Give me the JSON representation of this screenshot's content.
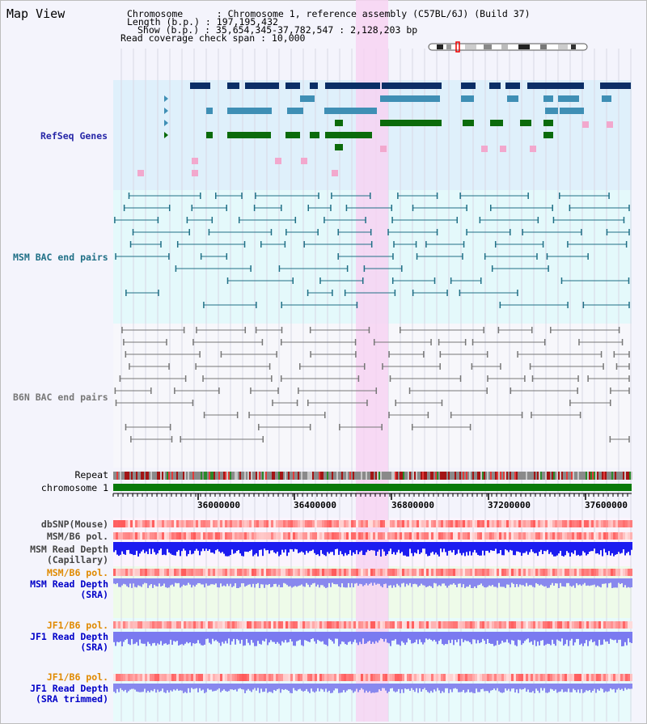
{
  "title": "Map View",
  "info": {
    "chromosome": "Chromosome      : Chromosome 1, reference assembly (C57BL/6J) (Build 37)",
    "length": "Length (b.p.) : 197,195,432",
    "show": "Show (b.p.) : 35,654,345-37,782,547 : 2,128,203 bp",
    "coverage": "Read coverage check span : 10,000"
  },
  "tracks": {
    "refseq": "RefSeq Genes",
    "msm_bac": "MSM BAC end pairs",
    "b6n_bac": "B6N BAC end pairs",
    "repeat": "Repeat",
    "chromosome": "chromosome 1",
    "dbsnp": "dbSNP(Mouse)",
    "msm_b6_pol": "MSM/B6 pol.",
    "msm_depth_cap_1": "MSM Read Depth",
    "msm_depth_cap_2": "(Capillary)",
    "msm_b6_pol2": "MSM/B6 pol.",
    "msm_depth_sra_1": "MSM Read Depth",
    "msm_depth_sra_2": "(SRA)",
    "jf1_b6_pol": "JF1/B6 pol.",
    "jf1_depth_sra_1": "JF1 Read Depth",
    "jf1_depth_sra_2": "(SRA)",
    "jf1_b6_pol2": "JF1/B6 pol.",
    "jf1_depth_trim_1": "JF1 Read Depth",
    "jf1_depth_trim_2": "(SRA trimmed)"
  },
  "axis": {
    "ticks": [
      "36000000",
      "36400000",
      "36800000",
      "37200000",
      "37600000"
    ]
  },
  "colors": {
    "refseq_bg": "#dff0fb",
    "msm_bg": "#e4f9fb",
    "highlight": "#f7d4f2",
    "dark_gene": "#0b2e66",
    "mid_gene": "#3f8fb5",
    "green_gene": "#0b6b0b",
    "msm_line": "#1f6f86",
    "b6n_line": "#777777",
    "depth_blue": "#1c1cf0",
    "depth_violet": "#8888ee",
    "chrom_green": "#0a7a0a"
  }
}
